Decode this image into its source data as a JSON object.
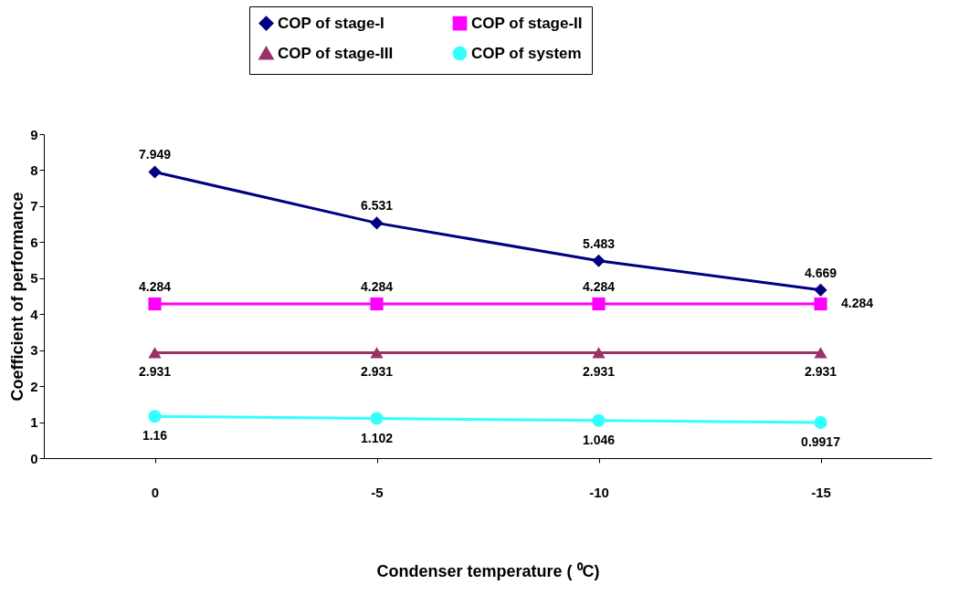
{
  "chart_data": {
    "type": "line",
    "xlabel": "Condenser temperature ( ⁰C)",
    "ylabel": "Coefficient of performance",
    "categories": [
      "0",
      "-5",
      "-10",
      "-15"
    ],
    "series": [
      {
        "name": "COP of stage-I",
        "color": "#000080",
        "marker": "diamond",
        "values": [
          7.949,
          6.531,
          5.483,
          4.669
        ]
      },
      {
        "name": "COP of stage-II",
        "color": "#ff00ff",
        "marker": "square",
        "values": [
          4.284,
          4.284,
          4.284,
          4.284
        ]
      },
      {
        "name": "COP of stage-III",
        "color": "#993366",
        "marker": "triangle",
        "values": [
          2.931,
          2.931,
          2.931,
          2.931
        ]
      },
      {
        "name": "COP of system",
        "color": "#33ffff",
        "marker": "circle",
        "values": [
          1.16,
          1.102,
          1.046,
          0.9917
        ]
      }
    ],
    "ylim": [
      0,
      9
    ],
    "yticks": [
      0,
      1,
      2,
      3,
      4,
      5,
      6,
      7,
      8,
      9
    ],
    "grid": false,
    "legend": "top",
    "data_labels": true,
    "line_style": "solid"
  }
}
